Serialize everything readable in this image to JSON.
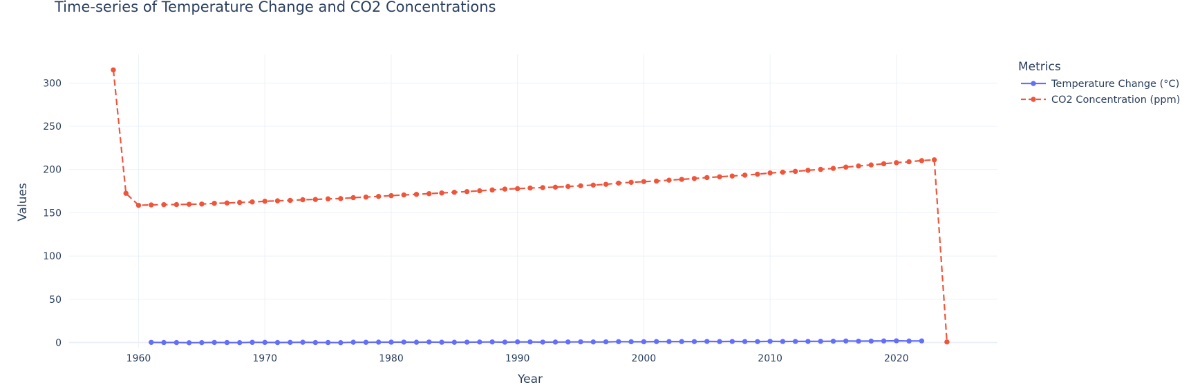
{
  "chart_data": {
    "type": "line",
    "title": "Time-series of Temperature Change and CO2 Concentrations",
    "xlabel": "Year",
    "ylabel": "Values",
    "xlim": [
      1954.5,
      2028
    ],
    "ylim": [
      -6,
      333
    ],
    "x_ticks": [
      1960,
      1970,
      1980,
      1990,
      2000,
      2010,
      2020
    ],
    "y_ticks": [
      0,
      50,
      100,
      150,
      200,
      250,
      300
    ],
    "grid": true,
    "legend": {
      "title": "Metrics",
      "placement": "top-right-outside"
    },
    "series": [
      {
        "name": "Temperature Change (°C)",
        "color": "#636efa",
        "dash": "solid",
        "x": [
          1961,
          1962,
          1963,
          1964,
          1965,
          1966,
          1967,
          1968,
          1969,
          1970,
          1971,
          1972,
          1973,
          1974,
          1975,
          1976,
          1977,
          1978,
          1979,
          1980,
          1981,
          1982,
          1983,
          1984,
          1985,
          1986,
          1987,
          1988,
          1989,
          1990,
          1991,
          1992,
          1993,
          1994,
          1995,
          1996,
          1997,
          1998,
          1999,
          2000,
          2001,
          2002,
          2003,
          2004,
          2005,
          2006,
          2007,
          2008,
          2009,
          2010,
          2011,
          2012,
          2013,
          2014,
          2015,
          2016,
          2017,
          2018,
          2019,
          2020,
          2021,
          2022
        ],
        "y": [
          0.16,
          0.01,
          -0.03,
          -0.27,
          -0.14,
          0.06,
          -0.06,
          -0.14,
          0.19,
          0.1,
          -0.03,
          0.1,
          0.28,
          -0.04,
          -0.01,
          -0.2,
          0.29,
          0.2,
          0.4,
          0.4,
          0.47,
          0.3,
          0.56,
          0.3,
          0.24,
          0.36,
          0.53,
          0.64,
          0.42,
          0.71,
          0.67,
          0.46,
          0.51,
          0.62,
          0.75,
          0.63,
          0.74,
          1.02,
          0.89,
          0.89,
          1.07,
          1.11,
          1.12,
          1.04,
          1.23,
          1.12,
          1.22,
          1.09,
          1.06,
          1.34,
          1.2,
          1.22,
          1.26,
          1.37,
          1.52,
          1.75,
          1.56,
          1.63,
          1.79,
          1.96,
          1.72,
          1.83
        ]
      },
      {
        "name": "CO2 Concentration (ppm)",
        "color": "#ef553b",
        "dash": "dash",
        "x": [
          1958,
          1959,
          1960,
          1961,
          1962,
          1963,
          1964,
          1965,
          1966,
          1967,
          1968,
          1969,
          1970,
          1971,
          1972,
          1973,
          1974,
          1975,
          1976,
          1977,
          1978,
          1979,
          1980,
          1981,
          1982,
          1983,
          1984,
          1985,
          1986,
          1987,
          1988,
          1989,
          1990,
          1991,
          1992,
          1993,
          1994,
          1995,
          1996,
          1997,
          1998,
          1999,
          2000,
          2001,
          2002,
          2003,
          2004,
          2005,
          2006,
          2007,
          2008,
          2009,
          2010,
          2011,
          2012,
          2013,
          2014,
          2015,
          2016,
          2017,
          2018,
          2019,
          2020,
          2021,
          2022,
          2023,
          2024
        ],
        "y": [
          315.2,
          172.5,
          158.6,
          159.1,
          159.4,
          159.5,
          159.8,
          160.1,
          160.9,
          161.3,
          161.9,
          162.5,
          163.3,
          163.8,
          164.3,
          165.1,
          165.4,
          166.1,
          166.4,
          167.5,
          168.1,
          168.9,
          169.8,
          170.6,
          171.3,
          172.1,
          172.9,
          173.7,
          174.5,
          175.4,
          176.4,
          177.4,
          177.9,
          178.6,
          179.1,
          179.6,
          180.4,
          181.2,
          182.0,
          182.9,
          184.3,
          185.2,
          186.0,
          186.6,
          187.7,
          188.6,
          189.6,
          190.7,
          191.6,
          192.5,
          193.5,
          194.6,
          196.0,
          196.9,
          197.9,
          199.1,
          200.2,
          201.3,
          202.8,
          204.1,
          205.3,
          206.7,
          207.9,
          209.0,
          210.3,
          211.2,
          0.6
        ]
      }
    ]
  }
}
